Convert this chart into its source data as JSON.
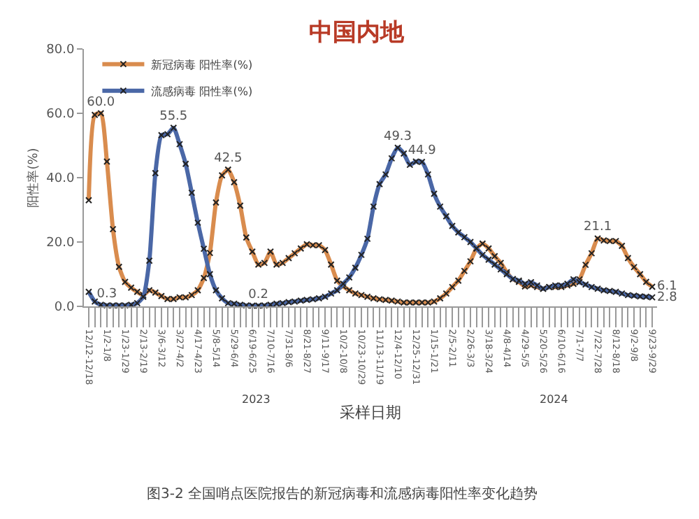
{
  "chart_data": {
    "type": "line",
    "title": "中国内地",
    "xlabel": "采样日期",
    "ylabel": "阳性率(%)",
    "categories": [
      "12/12-12/18",
      null,
      null,
      "1/2-1/8",
      null,
      null,
      "1/23-1/29",
      null,
      null,
      "2/13-2/19",
      null,
      null,
      "3/6-3/12",
      null,
      null,
      "3/27-4/2",
      null,
      null,
      "4/17-4/23",
      null,
      null,
      "5/8-5/14",
      null,
      null,
      "5/29-6/4",
      null,
      null,
      "6/19-6/25",
      null,
      null,
      "7/10-7/16",
      null,
      null,
      "7/31-8/6",
      null,
      null,
      "8/21-8/27",
      null,
      null,
      "9/11-9/17",
      null,
      null,
      "10/2-10/8",
      null,
      null,
      "10/23-10/29",
      null,
      null,
      "11/13-11/19",
      null,
      null,
      "12/4-12/10",
      null,
      null,
      "12/25-12/31",
      null,
      null,
      "1/15-1/21",
      null,
      null,
      "2/5-2/11",
      null,
      null,
      "2/26-3/3",
      null,
      null,
      "3/18-3/24",
      null,
      null,
      "4/8-4/14",
      null,
      null,
      "4/29-5/5",
      null,
      null,
      "5/20-5/26",
      null,
      null,
      "6/10-6/16",
      null,
      null,
      "7/1-7/7",
      null,
      null,
      "7/22-7/28",
      null,
      null,
      "8/12-8/18",
      null,
      null,
      "9/2-9/8",
      null,
      null,
      "9/23-9/29"
    ],
    "series": [
      {
        "name": "新冠病毒 阳性率(%)",
        "color": "#d98c4e",
        "values": [
          33,
          59.5,
          60.0,
          45,
          24,
          12.3,
          7.6,
          5.8,
          4.5,
          3.5,
          5,
          4.3,
          3.2,
          2.3,
          2.3,
          2.8,
          2.8,
          3.5,
          5,
          8.8,
          16.6,
          32.3,
          40.7,
          42.5,
          38.6,
          31.3,
          21.4,
          17,
          13,
          13.5,
          17,
          13,
          13.5,
          15,
          16.5,
          18,
          19.3,
          19,
          19,
          17.5,
          13,
          8,
          6.2,
          5,
          4,
          3.5,
          3,
          2.5,
          2.2,
          2,
          1.8,
          1.5,
          1.2,
          1.2,
          1.2,
          1.2,
          1.2,
          1.5,
          2.5,
          4,
          6,
          8,
          11,
          14,
          18,
          19.5,
          18,
          15.6,
          13.5,
          10.6,
          8.4,
          7.6,
          6.2,
          6.5,
          6,
          5.5,
          6,
          6,
          6,
          6.5,
          7,
          8.4,
          12.9,
          16.5,
          21.1,
          20.5,
          20.3,
          20.3,
          18.8,
          15,
          12.2,
          10,
          7.6,
          6.1
        ],
        "value_labels": [
          null,
          null,
          "60.0",
          null,
          null,
          null,
          null,
          null,
          null,
          null,
          null,
          null,
          null,
          null,
          null,
          null,
          null,
          null,
          null,
          null,
          null,
          null,
          null,
          "42.5",
          null,
          null,
          null,
          null,
          null,
          null,
          null,
          null,
          null,
          null,
          null,
          null,
          null,
          null,
          null,
          null,
          null,
          null,
          null,
          null,
          null,
          null,
          null,
          null,
          null,
          null,
          null,
          null,
          null,
          null,
          null,
          null,
          null,
          null,
          null,
          null,
          null,
          null,
          null,
          null,
          null,
          null,
          null,
          null,
          null,
          null,
          null,
          null,
          null,
          null,
          null,
          null,
          null,
          null,
          null,
          null,
          null,
          null,
          null,
          null,
          "21.1",
          null,
          null,
          null,
          null,
          null,
          null,
          null,
          null,
          "6.1"
        ]
      },
      {
        "name": "流感病毒 阳性率(%)",
        "color": "#4a67a6",
        "values": [
          4.5,
          1.5,
          0.5,
          0.3,
          0.3,
          0.3,
          0.3,
          0.5,
          1,
          3,
          14.2,
          41.4,
          53.2,
          53.5,
          55.5,
          50.4,
          44.3,
          35.3,
          26,
          17.9,
          10,
          5,
          2.5,
          1,
          0.8,
          0.5,
          0.3,
          0.2,
          0.2,
          0.3,
          0.5,
          0.8,
          1,
          1.3,
          1.5,
          1.8,
          2,
          2.2,
          2.5,
          3,
          4,
          5,
          7,
          9,
          12,
          16,
          21,
          31,
          38,
          41,
          46,
          49.3,
          47.5,
          44,
          45,
          44.9,
          41,
          35,
          31,
          28,
          25,
          23,
          21.5,
          20,
          18,
          16,
          14.5,
          13,
          11.5,
          10,
          8.5,
          8,
          7,
          7.5,
          6.5,
          5.5,
          6,
          6.5,
          6.5,
          7,
          8.4,
          7.5,
          6.8,
          6,
          5.5,
          5,
          4.8,
          4.5,
          4,
          3.5,
          3.3,
          3.1,
          3,
          2.8
        ],
        "value_labels": [
          null,
          null,
          null,
          "0.3",
          null,
          null,
          null,
          null,
          null,
          null,
          null,
          null,
          null,
          null,
          "55.5",
          null,
          null,
          null,
          null,
          null,
          null,
          null,
          null,
          null,
          null,
          null,
          null,
          null,
          "0.2",
          null,
          null,
          null,
          null,
          null,
          null,
          null,
          null,
          null,
          null,
          null,
          null,
          null,
          null,
          null,
          null,
          null,
          null,
          null,
          null,
          null,
          null,
          "49.3",
          null,
          null,
          null,
          "44.9",
          null,
          null,
          null,
          null,
          null,
          null,
          null,
          null,
          null,
          null,
          null,
          null,
          null,
          null,
          null,
          null,
          null,
          null,
          null,
          null,
          null,
          null,
          null,
          null,
          null,
          null,
          null,
          null,
          null,
          null,
          null,
          null,
          null,
          null,
          null,
          null,
          null,
          "2.8"
        ]
      }
    ],
    "ylim": [
      0,
      80
    ],
    "yticks": [
      {
        "value": 0,
        "label": "0.0"
      },
      {
        "value": 20,
        "label": "20.0"
      },
      {
        "value": 40,
        "label": "40.0"
      },
      {
        "value": 60,
        "label": "60.0"
      },
      {
        "value": 80,
        "label": "80.0"
      }
    ],
    "grid": false,
    "legend": "top left",
    "marker": "cross",
    "line_style": "solid",
    "annotations": [
      "2023",
      "2024",
      "图3-2 全国哨点医院报告的新冠病毒和流感病毒阳性率变化趋势"
    ]
  }
}
